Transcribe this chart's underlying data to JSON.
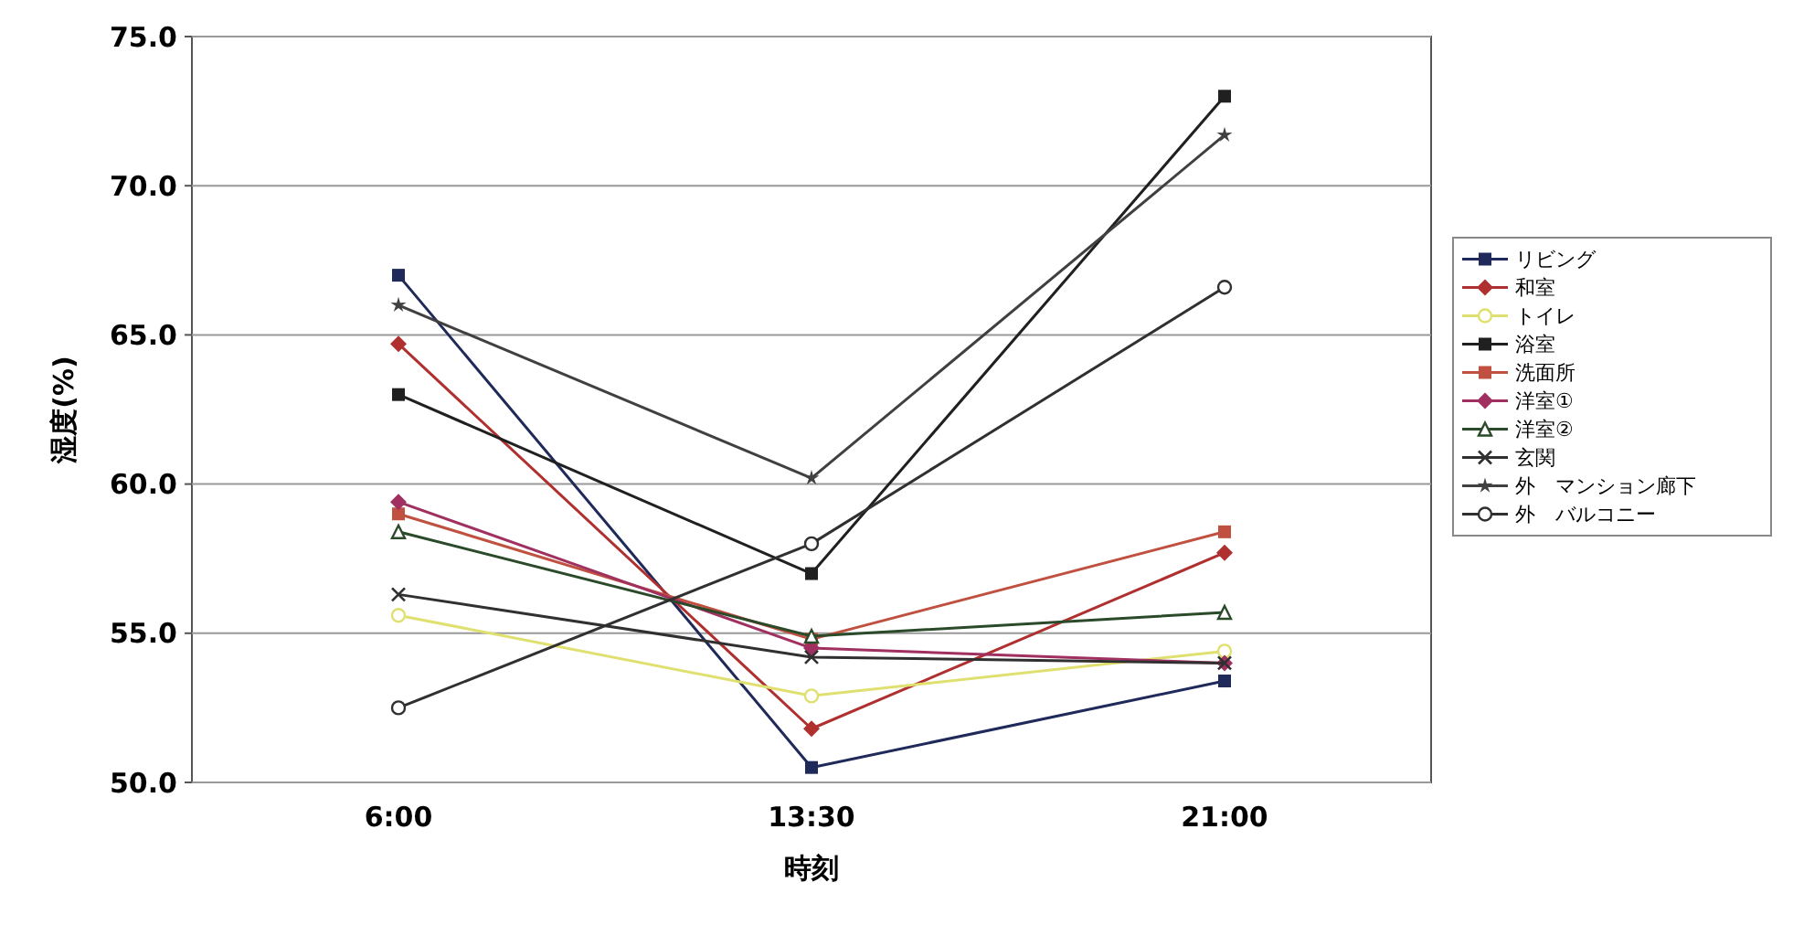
{
  "chart_data": {
    "type": "line",
    "xlabel": "時刻",
    "ylabel": "湿度(%)",
    "categories": [
      "6:00",
      "13:30",
      "21:00"
    ],
    "ylim": [
      50,
      75
    ],
    "yticks": [
      {
        "value": 50,
        "label": "50.0"
      },
      {
        "value": 55,
        "label": "55.0"
      },
      {
        "value": 60,
        "label": "60.0"
      },
      {
        "value": 65,
        "label": "65.0"
      },
      {
        "value": 70,
        "label": "70.0"
      },
      {
        "value": 75,
        "label": "75.0"
      }
    ],
    "grid": "y",
    "legend": "right",
    "line_style": "solid",
    "series": [
      {
        "name": "リビング",
        "color": "#1f2a5a",
        "marker": "square",
        "values": [
          67.0,
          50.5,
          53.4
        ]
      },
      {
        "name": "和室",
        "color": "#b03030",
        "marker": "diamond",
        "values": [
          64.7,
          51.8,
          57.7
        ]
      },
      {
        "name": "トイレ",
        "color": "#e0e070",
        "marker": "circle",
        "values": [
          55.6,
          52.9,
          54.4
        ]
      },
      {
        "name": "浴室",
        "color": "#202020",
        "marker": "square",
        "values": [
          63.0,
          57.0,
          73.0
        ]
      },
      {
        "name": "洗面所",
        "color": "#c05040",
        "marker": "square",
        "values": [
          59.0,
          54.8,
          58.4
        ]
      },
      {
        "name": "洋室①",
        "color": "#a03060",
        "marker": "diamond",
        "values": [
          59.4,
          54.5,
          54.0
        ]
      },
      {
        "name": "洋室②",
        "color": "#2a4a2a",
        "marker": "triangle",
        "values": [
          58.4,
          54.9,
          55.7
        ]
      },
      {
        "name": "玄関",
        "color": "#303030",
        "marker": "cross",
        "values": [
          56.3,
          54.2,
          54.0
        ]
      },
      {
        "name": "外　マンション廊下",
        "color": "#404040",
        "marker": "star",
        "values": [
          66.0,
          60.2,
          71.7
        ]
      },
      {
        "name": "外　バルコニー",
        "color": "#303030",
        "marker": "circle",
        "values": [
          52.5,
          58.0,
          66.6
        ]
      }
    ]
  }
}
